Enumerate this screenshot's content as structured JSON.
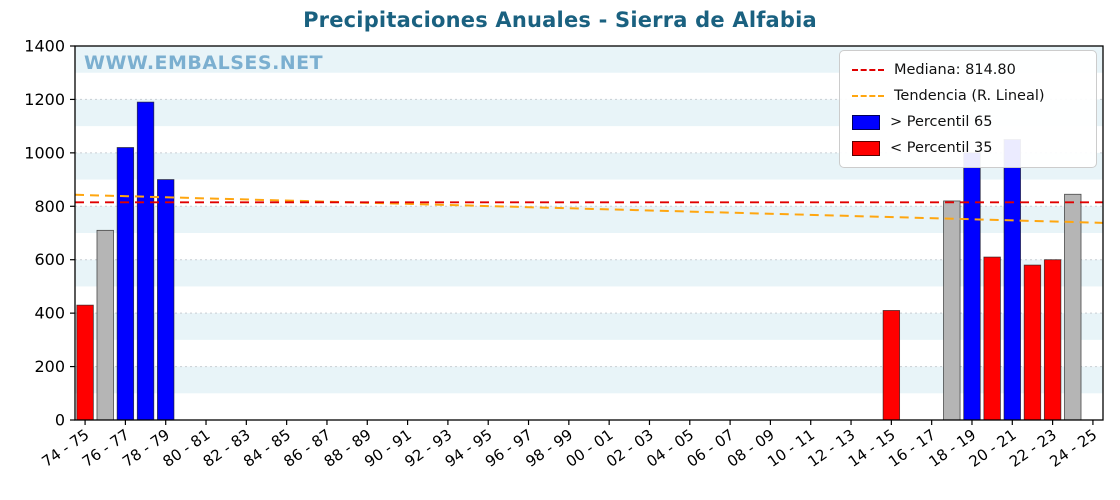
{
  "title": "Precipitaciones Anuales - Sierra de Alfabia",
  "watermark": "WWW.EMBALSES.NET",
  "colors": {
    "title": "#1a6180",
    "watermark": "#7bafd0",
    "high": "#0000ff",
    "low": "#ff0000",
    "mid": "#b5b5b5",
    "bar_edge": "#1a1a1a",
    "median_line": "#e00000",
    "trend_line": "#ffa60f",
    "band": "#e8f4f8",
    "grid": "#c9ced3",
    "axis": "#000000"
  },
  "legend": {
    "items": [
      {
        "type": "line",
        "color_key": "median_line",
        "label": "Mediana: 814.80"
      },
      {
        "type": "line",
        "color_key": "trend_line",
        "label": "Tendencia (R. Lineal)"
      },
      {
        "type": "patch",
        "color_key": "high",
        "label": "> Percentil 65"
      },
      {
        "type": "patch",
        "color_key": "low",
        "label": "< Percentil 35"
      }
    ]
  },
  "chart_data": {
    "type": "bar",
    "title": "Precipitaciones Anuales - Sierra de Alfabia",
    "xlabel": "",
    "ylabel": "",
    "ylim": [
      0,
      1400
    ],
    "yticks": [
      0,
      200,
      400,
      600,
      800,
      1000,
      1200,
      1400
    ],
    "n_slots": 51,
    "xtick_labels": [
      "74 - 75",
      "76 - 77",
      "78 - 79",
      "80 - 81",
      "82 - 83",
      "84 - 85",
      "86 - 87",
      "88 - 89",
      "90 - 91",
      "92 - 93",
      "94 - 95",
      "96 - 97",
      "98 - 99",
      "00 - 01",
      "02 - 03",
      "04 - 05",
      "06 - 07",
      "08 - 09",
      "10 - 11",
      "12 - 13",
      "14 - 15",
      "16 - 17",
      "18 - 19",
      "20 - 21",
      "22 - 23",
      "24 - 25"
    ],
    "grid": "horizontal",
    "legend_position": "upper right",
    "median": 814.8,
    "trend_linear": {
      "start_value": 843,
      "end_value": 738
    },
    "category_meaning": {
      "high": "> Percentil 65",
      "low": "< Percentil 35",
      "mid": "entre percentil 35 y 65"
    },
    "bars": [
      {
        "label": "74 - 75",
        "index": 0,
        "value": 430,
        "category": "low"
      },
      {
        "label": "75 - 76",
        "index": 1,
        "value": 710,
        "category": "mid"
      },
      {
        "label": "76 - 77",
        "index": 2,
        "value": 1020,
        "category": "high"
      },
      {
        "label": "77 - 78",
        "index": 3,
        "value": 1190,
        "category": "high"
      },
      {
        "label": "78 - 79",
        "index": 4,
        "value": 900,
        "category": "high"
      },
      {
        "label": "14 - 15",
        "index": 40,
        "value": 410,
        "category": "low"
      },
      {
        "label": "17 - 18",
        "index": 43,
        "value": 820,
        "category": "mid"
      },
      {
        "label": "18 - 19",
        "index": 44,
        "value": 1000,
        "category": "high"
      },
      {
        "label": "19 - 20",
        "index": 45,
        "value": 610,
        "category": "low"
      },
      {
        "label": "20 - 21",
        "index": 46,
        "value": 1050,
        "category": "high"
      },
      {
        "label": "21 - 22",
        "index": 47,
        "value": 580,
        "category": "low"
      },
      {
        "label": "22 - 23",
        "index": 48,
        "value": 600,
        "category": "low"
      },
      {
        "label": "23 - 24",
        "index": 49,
        "value": 845,
        "category": "mid"
      }
    ]
  }
}
